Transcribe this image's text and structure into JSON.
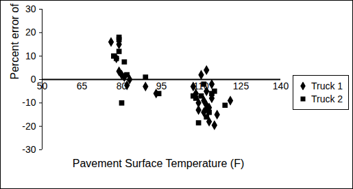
{
  "chart_data": {
    "type": "scatter",
    "x_label": "Pavement Surface Temperature (F)",
    "y_label": "Percent error of GVW",
    "xlim": [
      50,
      140
    ],
    "xticks": [
      50,
      65,
      80,
      95,
      110,
      125,
      140
    ],
    "ylim": [
      -30,
      30
    ],
    "yticks": [
      -30,
      -20,
      -10,
      0,
      10,
      20,
      30
    ],
    "legend": "right",
    "series": [
      {
        "name": "Truck 1",
        "color": "#000000",
        "marker": "diamond",
        "x": [
          76,
          78,
          79,
          79,
          80,
          81,
          82,
          83,
          89,
          93,
          107,
          108,
          109,
          109,
          110,
          111,
          111,
          112,
          112,
          112,
          113,
          113,
          114,
          114,
          115,
          116,
          121
        ],
        "values": [
          16,
          9,
          15,
          3.5,
          2,
          1,
          -2.5,
          0,
          -3,
          -6,
          -3,
          -6,
          -13,
          -10,
          2,
          -9,
          -14,
          -11,
          -5,
          4,
          -12,
          -18,
          -2,
          -8,
          -19.5,
          -15,
          -9
        ]
      },
      {
        "name": "Truck 2",
        "color": "#000000",
        "marker": "square",
        "x": [
          77,
          78,
          79,
          79,
          79,
          80,
          81,
          82,
          89,
          94,
          107,
          108,
          109,
          110,
          111,
          112,
          112,
          113,
          114,
          115,
          119
        ],
        "values": [
          10,
          9,
          18,
          17,
          12,
          -10,
          7.5,
          2,
          1,
          -6,
          -7,
          -8,
          -18.5,
          -7,
          -2,
          -16,
          -13,
          -14,
          -6,
          -5,
          -11
        ]
      }
    ]
  }
}
